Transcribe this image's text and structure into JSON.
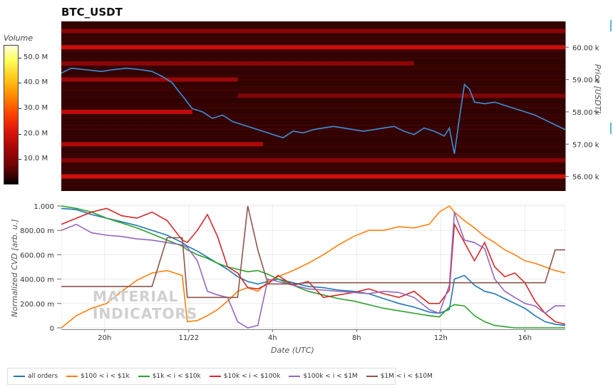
{
  "title": "BTC_USDT",
  "colorbar": {
    "title": "Volume",
    "ticks": [
      "50.0 M",
      "40.0 M",
      "30.0 M",
      "20.0 M",
      "10.0 M"
    ],
    "tick_values": [
      50,
      40,
      30,
      20,
      10
    ],
    "max": 55
  },
  "chart_data": [
    {
      "type": "heatmap",
      "title": "BTC_USDT",
      "ylabel": "Price [USDT]",
      "ylim": [
        55.55,
        60.8
      ],
      "y_ticks": [
        "60.00 k",
        "59.00 k",
        "58.00 k",
        "57.00 k",
        "56.00 k"
      ],
      "y_tick_values": [
        60,
        59,
        58,
        57,
        56
      ],
      "bands": [
        {
          "price": 60.0,
          "intensity": 0.75,
          "x_from": 0.0,
          "x_to": 1.0
        },
        {
          "price": 58.0,
          "intensity": 0.7,
          "x_from": 0.0,
          "x_to": 0.26
        },
        {
          "price": 57.0,
          "intensity": 0.6,
          "x_from": 0.0,
          "x_to": 0.4
        },
        {
          "price": 56.0,
          "intensity": 0.8,
          "x_from": 0.0,
          "x_to": 1.0
        },
        {
          "price": 59.0,
          "intensity": 0.45,
          "x_from": 0.0,
          "x_to": 0.35
        },
        {
          "price": 59.5,
          "intensity": 0.4,
          "x_from": 0.0,
          "x_to": 0.7
        },
        {
          "price": 60.5,
          "intensity": 0.35,
          "x_from": 0.0,
          "x_to": 1.0
        },
        {
          "price": 56.5,
          "intensity": 0.35,
          "x_from": 0.0,
          "x_to": 1.0
        },
        {
          "price": 58.5,
          "intensity": 0.3,
          "x_from": 0.35,
          "x_to": 1.0
        }
      ],
      "price_series": {
        "x": [
          0,
          0.02,
          0.05,
          0.08,
          0.1,
          0.13,
          0.16,
          0.18,
          0.2,
          0.22,
          0.24,
          0.26,
          0.28,
          0.3,
          0.32,
          0.34,
          0.36,
          0.38,
          0.4,
          0.42,
          0.44,
          0.46,
          0.48,
          0.5,
          0.52,
          0.54,
          0.56,
          0.58,
          0.6,
          0.62,
          0.64,
          0.66,
          0.68,
          0.7,
          0.72,
          0.74,
          0.76,
          0.77,
          0.78,
          0.79,
          0.8,
          0.81,
          0.82,
          0.84,
          0.86,
          0.88,
          0.9,
          0.92,
          0.94,
          0.96,
          0.98,
          1.0
        ],
        "y": [
          59.2,
          59.35,
          59.3,
          59.25,
          59.3,
          59.35,
          59.3,
          59.25,
          59.1,
          58.9,
          58.5,
          58.1,
          58.0,
          57.8,
          57.9,
          57.7,
          57.6,
          57.5,
          57.4,
          57.3,
          57.2,
          57.4,
          57.35,
          57.45,
          57.5,
          57.55,
          57.5,
          57.45,
          57.4,
          57.45,
          57.5,
          57.55,
          57.4,
          57.3,
          57.5,
          57.4,
          57.25,
          57.5,
          56.7,
          57.8,
          58.85,
          58.7,
          58.3,
          58.25,
          58.3,
          58.2,
          58.1,
          58.0,
          57.9,
          57.75,
          57.6,
          57.45
        ]
      }
    },
    {
      "type": "line",
      "xlabel": "Date (UTC)",
      "ylabel": "Normalized CVD [arb. u.]",
      "ylim": [
        0,
        1
      ],
      "y_ticks": [
        "1.000",
        "800.00 m",
        "600.00 m",
        "400.00 m",
        "200.00 m",
        "0"
      ],
      "y_tick_values": [
        1.0,
        0.8,
        0.6,
        0.4,
        0.2,
        0.0
      ],
      "x_ticks": [
        "20h",
        "11/22",
        "4h",
        "8h",
        "12h",
        "16h"
      ],
      "x_tick_values": [
        0.086,
        0.253,
        0.419,
        0.586,
        0.753,
        0.92
      ],
      "x": [
        0,
        0.03,
        0.06,
        0.09,
        0.12,
        0.15,
        0.18,
        0.21,
        0.24,
        0.25,
        0.27,
        0.29,
        0.31,
        0.33,
        0.35,
        0.37,
        0.39,
        0.41,
        0.43,
        0.46,
        0.49,
        0.52,
        0.55,
        0.58,
        0.61,
        0.64,
        0.67,
        0.7,
        0.73,
        0.75,
        0.77,
        0.78,
        0.8,
        0.82,
        0.84,
        0.86,
        0.88,
        0.9,
        0.92,
        0.94,
        0.96,
        0.98,
        1.0
      ],
      "series": [
        {
          "name": "all orders",
          "color": "#1f77b4",
          "values": [
            0.98,
            0.97,
            0.93,
            0.9,
            0.87,
            0.84,
            0.8,
            0.76,
            0.7,
            0.67,
            0.63,
            0.58,
            0.53,
            0.48,
            0.42,
            0.38,
            0.36,
            0.38,
            0.4,
            0.37,
            0.34,
            0.33,
            0.31,
            0.3,
            0.28,
            0.24,
            0.2,
            0.17,
            0.13,
            0.12,
            0.15,
            0.4,
            0.43,
            0.35,
            0.3,
            0.28,
            0.24,
            0.2,
            0.16,
            0.1,
            0.05,
            0.03,
            0.02
          ]
        },
        {
          "name": "$100 < i < $1k",
          "color": "#ff7f0e",
          "values": [
            0.0,
            0.1,
            0.16,
            0.2,
            0.3,
            0.39,
            0.45,
            0.47,
            0.43,
            0.05,
            0.06,
            0.1,
            0.15,
            0.22,
            0.3,
            0.33,
            0.3,
            0.38,
            0.42,
            0.47,
            0.53,
            0.6,
            0.68,
            0.75,
            0.8,
            0.8,
            0.83,
            0.82,
            0.85,
            0.95,
            1.0,
            0.95,
            0.88,
            0.82,
            0.75,
            0.7,
            0.64,
            0.6,
            0.55,
            0.53,
            0.5,
            0.47,
            0.45
          ]
        },
        {
          "name": "$1k < i < $10k",
          "color": "#2ca02c",
          "values": [
            1.0,
            0.98,
            0.95,
            0.9,
            0.86,
            0.82,
            0.77,
            0.72,
            0.67,
            0.64,
            0.6,
            0.57,
            0.53,
            0.5,
            0.48,
            0.46,
            0.47,
            0.44,
            0.4,
            0.35,
            0.3,
            0.27,
            0.24,
            0.22,
            0.19,
            0.16,
            0.14,
            0.12,
            0.1,
            0.09,
            0.17,
            0.19,
            0.18,
            0.1,
            0.05,
            0.02,
            0.01,
            0.0,
            0.0,
            0.0,
            0.0,
            0.0,
            0.0
          ]
        },
        {
          "name": "$10k < i < $100k",
          "color": "#d62728",
          "values": [
            0.85,
            0.9,
            0.95,
            0.98,
            0.92,
            0.9,
            0.95,
            0.88,
            0.72,
            0.7,
            0.8,
            0.93,
            0.75,
            0.5,
            0.45,
            0.33,
            0.32,
            0.36,
            0.43,
            0.35,
            0.38,
            0.25,
            0.27,
            0.29,
            0.32,
            0.28,
            0.25,
            0.3,
            0.2,
            0.2,
            0.31,
            0.85,
            0.7,
            0.55,
            0.7,
            0.5,
            0.42,
            0.45,
            0.37,
            0.22,
            0.12,
            0.05,
            0.03
          ]
        },
        {
          "name": "$100k < i < $1M",
          "color": "#9467bd",
          "values": [
            0.8,
            0.85,
            0.78,
            0.76,
            0.75,
            0.73,
            0.72,
            0.7,
            0.68,
            0.66,
            0.55,
            0.3,
            0.27,
            0.25,
            0.05,
            0.0,
            0.02,
            0.4,
            0.38,
            0.35,
            0.32,
            0.31,
            0.3,
            0.29,
            0.28,
            0.3,
            0.29,
            0.25,
            0.15,
            0.12,
            0.35,
            0.95,
            0.72,
            0.7,
            0.65,
            0.4,
            0.3,
            0.25,
            0.2,
            0.18,
            0.12,
            0.18,
            0.18
          ]
        },
        {
          "name": "$1M < i < $10M",
          "color": "#8c564b",
          "values": [
            0.34,
            0.34,
            0.34,
            0.34,
            0.34,
            0.34,
            0.34,
            0.74,
            0.74,
            0.25,
            0.25,
            0.25,
            0.25,
            0.25,
            0.25,
            1.0,
            0.64,
            0.36,
            0.36,
            0.36,
            0.37,
            0.37,
            0.37,
            0.37,
            0.37,
            0.37,
            0.37,
            0.37,
            0.37,
            0.37,
            0.37,
            0.37,
            0.37,
            0.37,
            0.37,
            0.37,
            0.37,
            0.37,
            0.37,
            0.37,
            0.37,
            0.64,
            0.64
          ]
        }
      ]
    }
  ],
  "watermark": [
    "MATERIAL",
    "INDICATORS"
  ],
  "legend": {
    "items": [
      {
        "label": "all orders",
        "color": "#1f77b4"
      },
      {
        "label": "$100 < i < $1k",
        "color": "#ff7f0e"
      },
      {
        "label": "$1k < i < $10k",
        "color": "#2ca02c"
      },
      {
        "label": "$10k < i < $100k",
        "color": "#d62728"
      },
      {
        "label": "$100k < i < $1M",
        "color": "#9467bd"
      },
      {
        "label": "$1M < i < $10M",
        "color": "#8c564b"
      }
    ]
  }
}
